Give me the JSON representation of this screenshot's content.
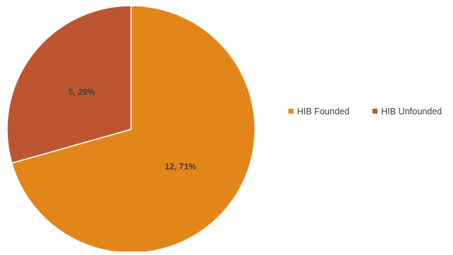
{
  "chart_data": {
    "type": "pie",
    "title": "",
    "slices": [
      {
        "name": "HIB Founded",
        "value": 12,
        "percent": "71%",
        "label": "12, 71%",
        "color": "#E3861A"
      },
      {
        "name": "HIB Unfounded",
        "value": 5,
        "percent": "29%",
        "label": "5, 29%",
        "color": "#BD5630"
      }
    ],
    "legend": {
      "position": "right",
      "entries": [
        "HIB Founded",
        "HIB Unfounded"
      ]
    },
    "slice_border_color": "#FFFFFF"
  }
}
